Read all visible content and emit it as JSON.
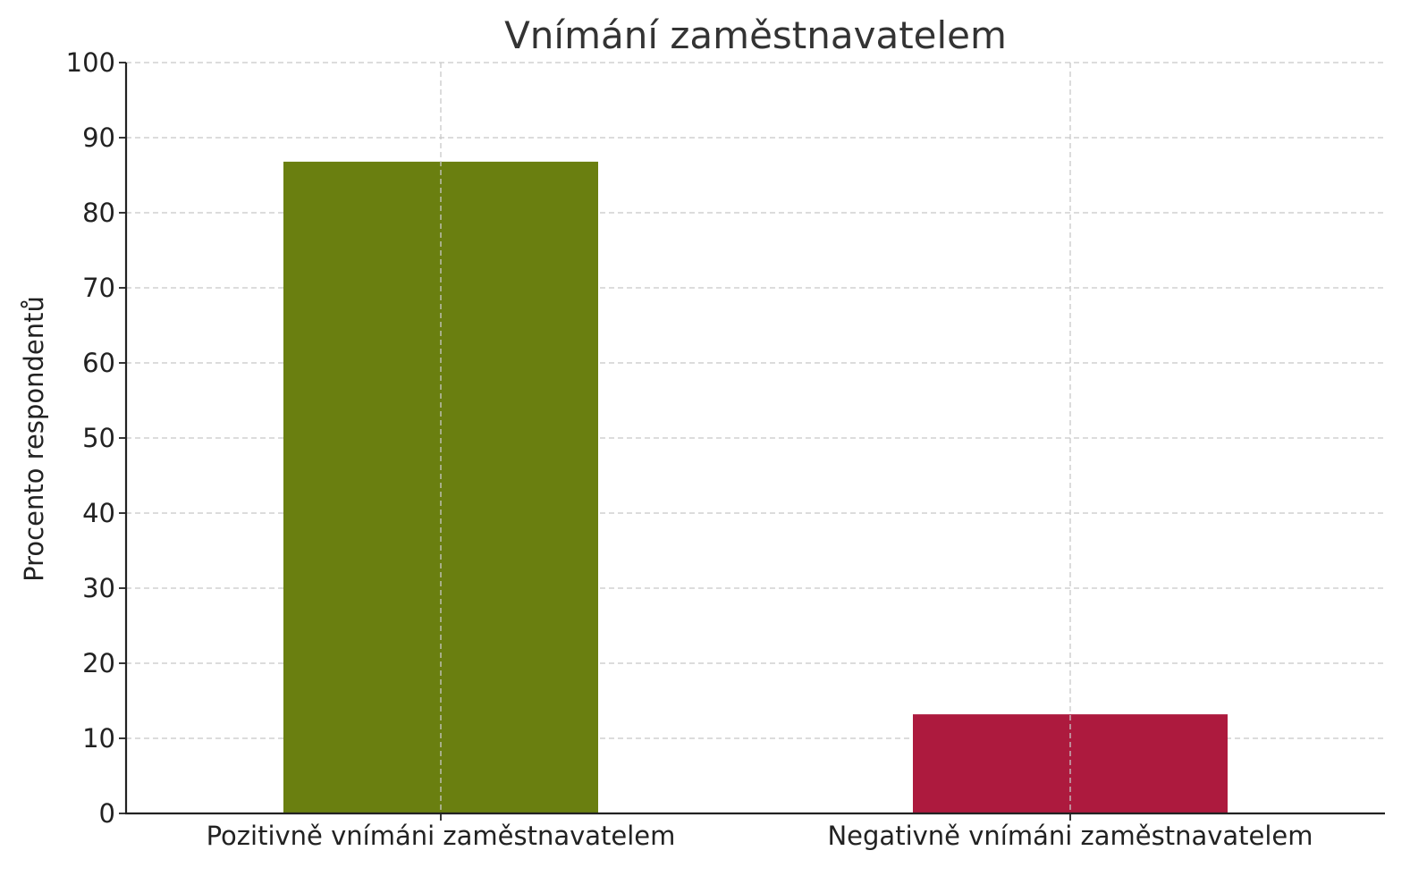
{
  "chart_data": {
    "type": "bar",
    "title": "Vnímání zaměstnavatelem",
    "xlabel": "",
    "ylabel": "Procento respondentů",
    "categories": [
      "Pozitivně vnímáni zaměstnavatelem",
      "Negativně vnímáni zaměstnavatelem"
    ],
    "values": [
      86.8,
      13.2
    ],
    "colors": [
      "#6a7f10",
      "#ad1a3e"
    ],
    "ylim": [
      0,
      100
    ],
    "yticks": [
      "0",
      "10",
      "20",
      "30",
      "40",
      "50",
      "60",
      "70",
      "80",
      "90",
      "100"
    ],
    "grid": true,
    "legend": "none"
  }
}
